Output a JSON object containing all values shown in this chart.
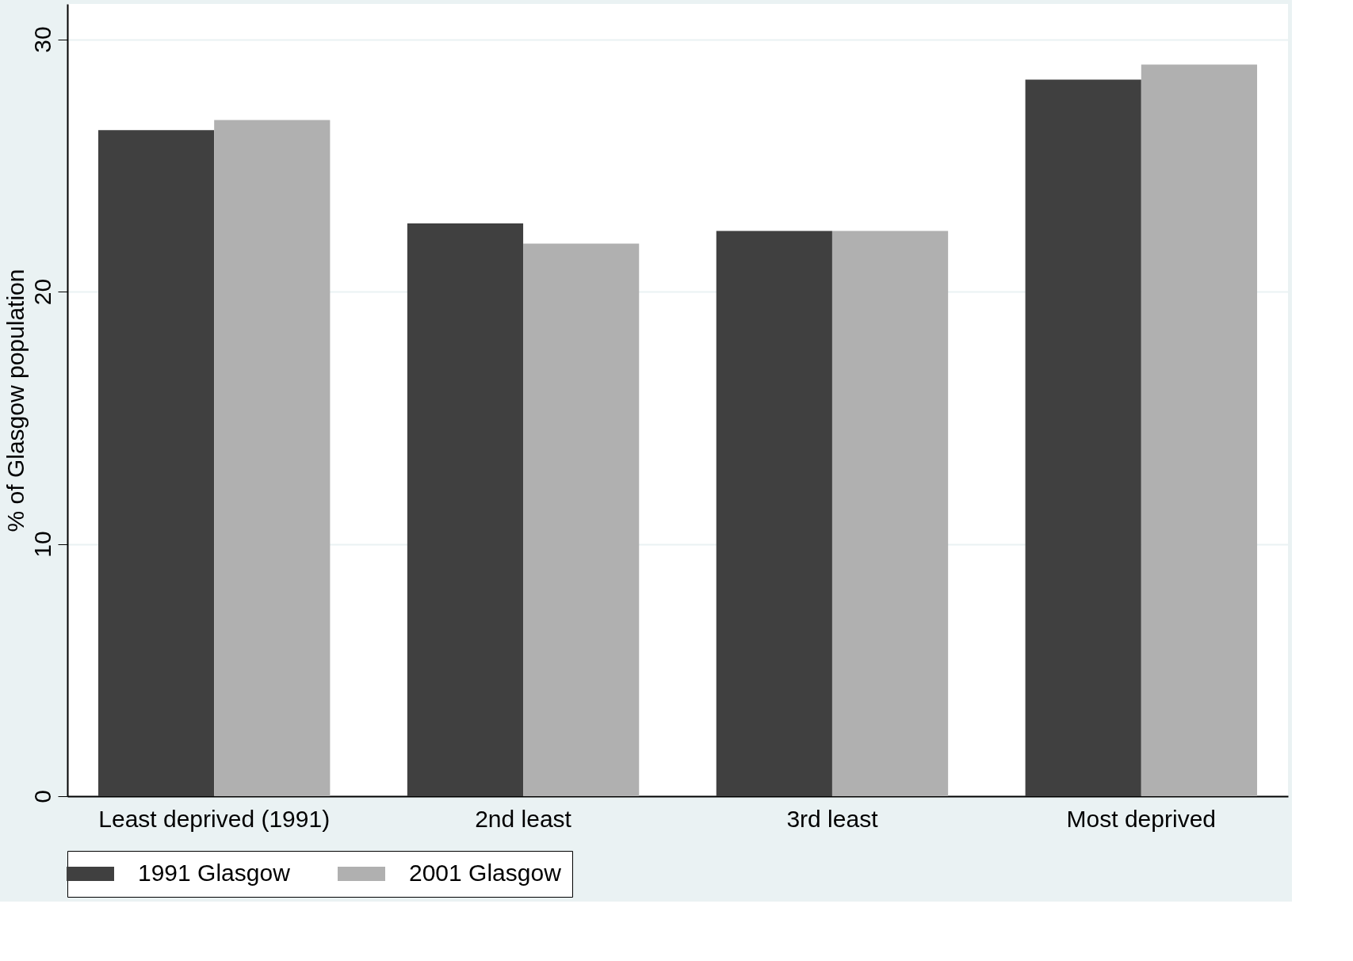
{
  "chart_data": {
    "type": "bar",
    "ylabel": "% of Glasgow population",
    "categories": [
      "Least deprived (1991)",
      "2nd least",
      "3rd least",
      "Most deprived"
    ],
    "series": [
      {
        "name": "1991 Glasgow",
        "color": "#404040",
        "values": [
          26.4,
          22.7,
          22.4,
          28.4
        ]
      },
      {
        "name": "2001 Glasgow",
        "color": "#b0b0b0",
        "values": [
          26.8,
          21.9,
          22.4,
          29.0
        ]
      }
    ],
    "ylim": [
      0,
      31.4
    ],
    "yticks": [
      0,
      10,
      20,
      30
    ],
    "grid": "y",
    "legend": "bottom"
  }
}
